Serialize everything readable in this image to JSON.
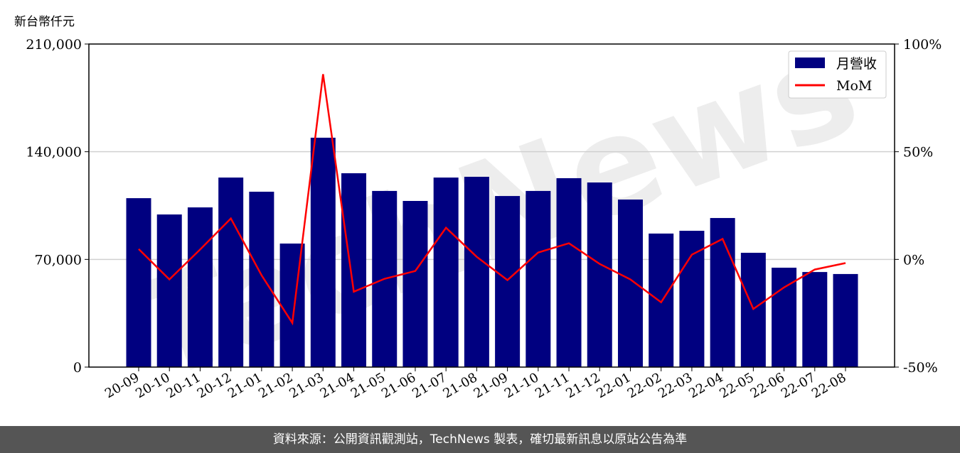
{
  "chart_data": {
    "type": "bar",
    "unit_label": "新台幣仟元",
    "categories": [
      "20-09",
      "20-10",
      "20-11",
      "20-12",
      "21-01",
      "21-02",
      "21-03",
      "21-04",
      "21-05",
      "21-06",
      "21-07",
      "21-08",
      "21-09",
      "21-10",
      "21-11",
      "21-12",
      "22-01",
      "22-02",
      "22-03",
      "22-04",
      "22-05",
      "22-06",
      "22-07",
      "22-08"
    ],
    "series": [
      {
        "name": "月營收",
        "type": "bar",
        "axis": "left",
        "color": "#000080",
        "values": [
          109800,
          99200,
          103800,
          123200,
          114000,
          80300,
          149100,
          126000,
          114500,
          108000,
          123200,
          123700,
          111200,
          114500,
          122800,
          120000,
          108900,
          86800,
          88600,
          96900,
          74300,
          64600,
          61800,
          60500
        ]
      },
      {
        "name": "MoM",
        "type": "line",
        "axis": "right",
        "color": "#ff0000",
        "values": [
          4.8,
          -9.3,
          4.6,
          19,
          -7.4,
          -29.5,
          86,
          -15,
          -9,
          -5.4,
          14.7,
          1.2,
          -9.6,
          3.2,
          7.5,
          -2.1,
          -9.3,
          -19.9,
          2.2,
          9.5,
          -23,
          -13,
          -4.7,
          -1.7
        ]
      }
    ],
    "left_axis": {
      "ylim": [
        0,
        210000
      ],
      "ticks": [
        "0",
        "70,000",
        "140,000",
        "210,000"
      ]
    },
    "right_axis": {
      "ylim": [
        -50,
        100
      ],
      "ticks": [
        "-50%",
        "0%",
        "50%",
        "100%"
      ]
    },
    "grid": "horizontal",
    "legend_placement": "top-right",
    "watermark": "TechNews"
  },
  "footer": "資料來源：公開資訊觀測站，TechNews 製表，確切最新訊息以原站公告為準"
}
